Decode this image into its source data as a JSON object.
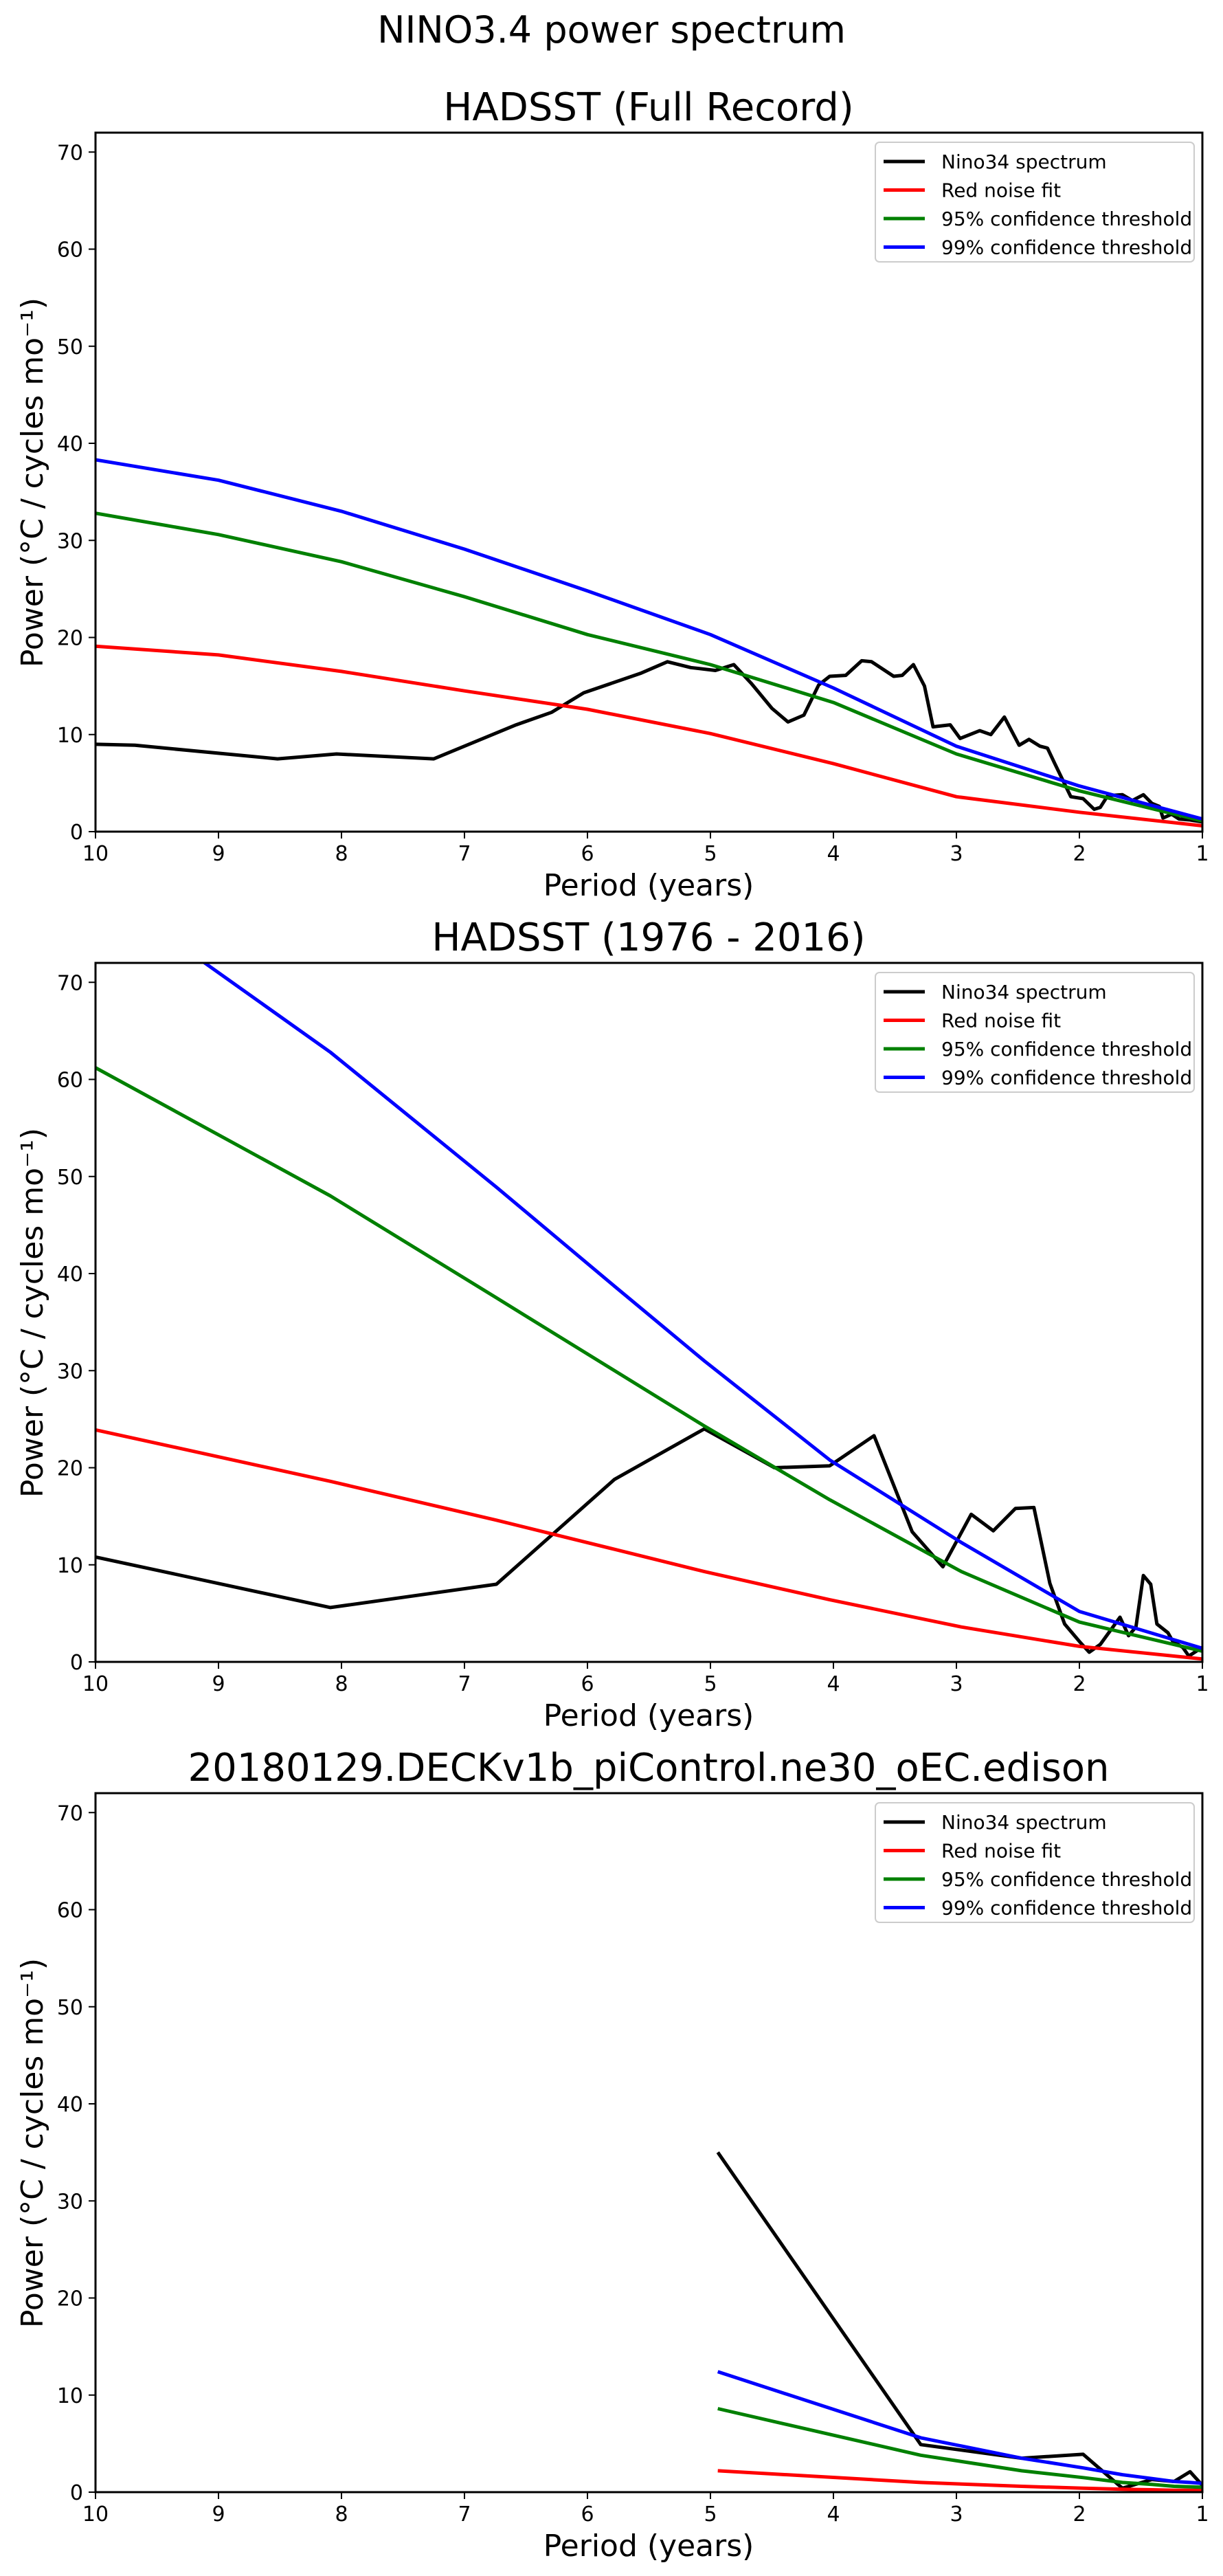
{
  "figure": {
    "suptitle": "NINO3.4 power spectrum"
  },
  "chart_data": [
    {
      "type": "line",
      "title": "HADSST (Full Record)",
      "xlabel": "Period (years)",
      "ylabel": "Power (°C / cycles mo⁻¹)",
      "xlim": [
        10,
        1
      ],
      "ylim": [
        0,
        72
      ],
      "x_reversed": true,
      "xticks": [
        10,
        9,
        8,
        7,
        6,
        5,
        4,
        3,
        2,
        1
      ],
      "yticks": [
        0,
        10,
        20,
        30,
        40,
        50,
        60,
        70
      ],
      "grid": false,
      "legend_position": "top-right",
      "series": [
        {
          "name": "Nino34 spectrum",
          "color": "#000000",
          "x": [
            10,
            9.68,
            8.52,
            8.04,
            7.25,
            6.58,
            6.29,
            6.03,
            5.57,
            5.35,
            5.16,
            4.96,
            4.81,
            4.67,
            4.5,
            4.37,
            4.24,
            4.12,
            4.03,
            3.9,
            3.77,
            3.69,
            3.51,
            3.44,
            3.35,
            3.26,
            3.19,
            3.05,
            2.97,
            2.81,
            2.72,
            2.61,
            2.49,
            2.41,
            2.32,
            2.26,
            2.2,
            2.07,
            1.97,
            1.88,
            1.83,
            1.77,
            1.65,
            1.57,
            1.48,
            1.41,
            1.35,
            1.32,
            1.25,
            1.19,
            1.1,
            1.0
          ],
          "y": [
            9.0,
            8.9,
            7.5,
            8.0,
            7.5,
            11.0,
            12.3,
            14.3,
            16.3,
            17.5,
            16.9,
            16.6,
            17.2,
            15.3,
            12.7,
            11.3,
            12.0,
            15.1,
            16.0,
            16.1,
            17.6,
            17.5,
            16.0,
            16.1,
            17.2,
            15.0,
            10.8,
            11.0,
            9.6,
            10.4,
            10.0,
            11.8,
            8.9,
            9.5,
            8.8,
            8.6,
            7.0,
            3.6,
            3.4,
            2.3,
            2.5,
            3.7,
            3.8,
            3.2,
            3.8,
            2.9,
            2.6,
            1.4,
            1.8,
            1.3,
            1.2,
            1.0
          ]
        },
        {
          "name": "Red noise fit",
          "color": "#ff0000",
          "x": [
            10,
            9,
            8,
            7,
            6,
            5,
            4,
            3,
            2,
            1
          ],
          "y": [
            19.1,
            18.2,
            16.5,
            14.5,
            12.6,
            10.1,
            7.0,
            3.6,
            2.0,
            0.6
          ]
        },
        {
          "name": "95% confidence threshold",
          "color": "#008000",
          "x": [
            10,
            9,
            8,
            7,
            6,
            5,
            4,
            3,
            2,
            1
          ],
          "y": [
            32.8,
            30.6,
            27.8,
            24.2,
            20.3,
            17.2,
            13.3,
            8.0,
            4.2,
            1.1
          ]
        },
        {
          "name": "99% confidence threshold",
          "color": "#0000ff",
          "x": [
            10,
            9,
            8,
            7,
            6,
            5,
            4,
            3,
            2,
            1
          ],
          "y": [
            38.3,
            36.2,
            33.0,
            29.1,
            24.8,
            20.3,
            14.8,
            8.8,
            4.7,
            1.3
          ]
        }
      ]
    },
    {
      "type": "line",
      "title": "HADSST (1976 - 2016)",
      "xlabel": "Period (years)",
      "ylabel": "Power (°C / cycles mo⁻¹)",
      "xlim": [
        10,
        1
      ],
      "ylim": [
        0,
        72
      ],
      "x_reversed": true,
      "xticks": [
        10,
        9,
        8,
        7,
        6,
        5,
        4,
        3,
        2,
        1
      ],
      "yticks": [
        0,
        10,
        20,
        30,
        40,
        50,
        60,
        70
      ],
      "grid": false,
      "legend_position": "top-right",
      "series": [
        {
          "name": "Nino34 spectrum",
          "color": "#000000",
          "x": [
            10,
            8.09,
            6.74,
            5.78,
            5.05,
            4.48,
            4.03,
            3.67,
            3.36,
            3.11,
            2.88,
            2.7,
            2.52,
            2.37,
            2.24,
            2.12,
            2.0,
            1.92,
            1.83,
            1.67,
            1.6,
            1.54,
            1.48,
            1.42,
            1.37,
            1.28,
            1.24,
            1.16,
            1.11,
            1.05,
            1.0
          ],
          "y": [
            10.8,
            5.6,
            8.0,
            18.8,
            24.0,
            20.0,
            20.2,
            23.3,
            13.4,
            9.8,
            15.2,
            13.5,
            15.8,
            15.9,
            8.1,
            3.9,
            2.1,
            1.0,
            1.8,
            4.6,
            2.7,
            3.6,
            8.9,
            8.0,
            3.9,
            3.0,
            2.1,
            1.5,
            0.6,
            1.1,
            1.5
          ]
        },
        {
          "name": "Red noise fit",
          "color": "#ff0000",
          "x": [
            10,
            8.09,
            6.74,
            5.78,
            5.05,
            4.03,
            2.96,
            2.0,
            1.0
          ],
          "y": [
            23.9,
            18.6,
            14.6,
            11.6,
            9.3,
            6.4,
            3.6,
            1.6,
            0.3
          ]
        },
        {
          "name": "95% confidence threshold",
          "color": "#008000",
          "x": [
            10,
            8.09,
            6.74,
            5.78,
            5.05,
            4.03,
            2.96,
            2.0,
            1.0
          ],
          "y": [
            61.2,
            48.0,
            37.5,
            30.0,
            24.3,
            16.7,
            9.3,
            4.1,
            1.1
          ]
        },
        {
          "name": "99% confidence threshold",
          "color": "#0000ff",
          "x": [
            10,
            8.09,
            6.74,
            5.78,
            5.05,
            4.03,
            2.96,
            2.0,
            1.0
          ],
          "y": [
            80.0,
            62.8,
            48.9,
            38.7,
            31.0,
            20.8,
            12.3,
            5.2,
            1.4
          ]
        }
      ]
    },
    {
      "type": "line",
      "title": "20180129.DECKv1b_piControl.ne30_oEC.edison",
      "xlabel": "Period (years)",
      "ylabel": "Power (°C / cycles mo⁻¹)",
      "xlim": [
        10,
        1
      ],
      "ylim": [
        0,
        72
      ],
      "x_reversed": true,
      "xticks": [
        10,
        9,
        8,
        7,
        6,
        5,
        4,
        3,
        2,
        1
      ],
      "yticks": [
        0,
        10,
        20,
        30,
        40,
        50,
        60,
        70
      ],
      "grid": false,
      "legend_position": "top-right",
      "series": [
        {
          "name": "Nino34 spectrum",
          "color": "#000000",
          "x": [
            4.94,
            3.29,
            2.47,
            1.97,
            1.65,
            1.41,
            1.23,
            1.1,
            1.0
          ],
          "y": [
            35.0,
            4.9,
            3.5,
            3.9,
            0.4,
            1.3,
            1.1,
            2.1,
            0.7
          ]
        },
        {
          "name": "Red noise fit",
          "color": "#ff0000",
          "x": [
            4.94,
            3.29,
            2.47,
            1.97,
            1.65,
            1.41,
            1.23,
            1.1,
            1.0
          ],
          "y": [
            2.2,
            1.0,
            0.6,
            0.4,
            0.3,
            0.25,
            0.2,
            0.2,
            0.2
          ]
        },
        {
          "name": "95% confidence threshold",
          "color": "#008000",
          "x": [
            4.94,
            3.29,
            2.47,
            1.97,
            1.65,
            1.41,
            1.23,
            1.1,
            1.0
          ],
          "y": [
            8.6,
            3.8,
            2.2,
            1.5,
            1.0,
            0.8,
            0.6,
            0.55,
            0.5
          ]
        },
        {
          "name": "99% confidence threshold",
          "color": "#0000ff",
          "x": [
            4.94,
            3.29,
            2.47,
            1.97,
            1.65,
            1.41,
            1.23,
            1.1,
            1.0
          ],
          "y": [
            12.4,
            5.6,
            3.5,
            2.5,
            1.8,
            1.4,
            1.1,
            1.0,
            0.9
          ]
        }
      ]
    }
  ]
}
